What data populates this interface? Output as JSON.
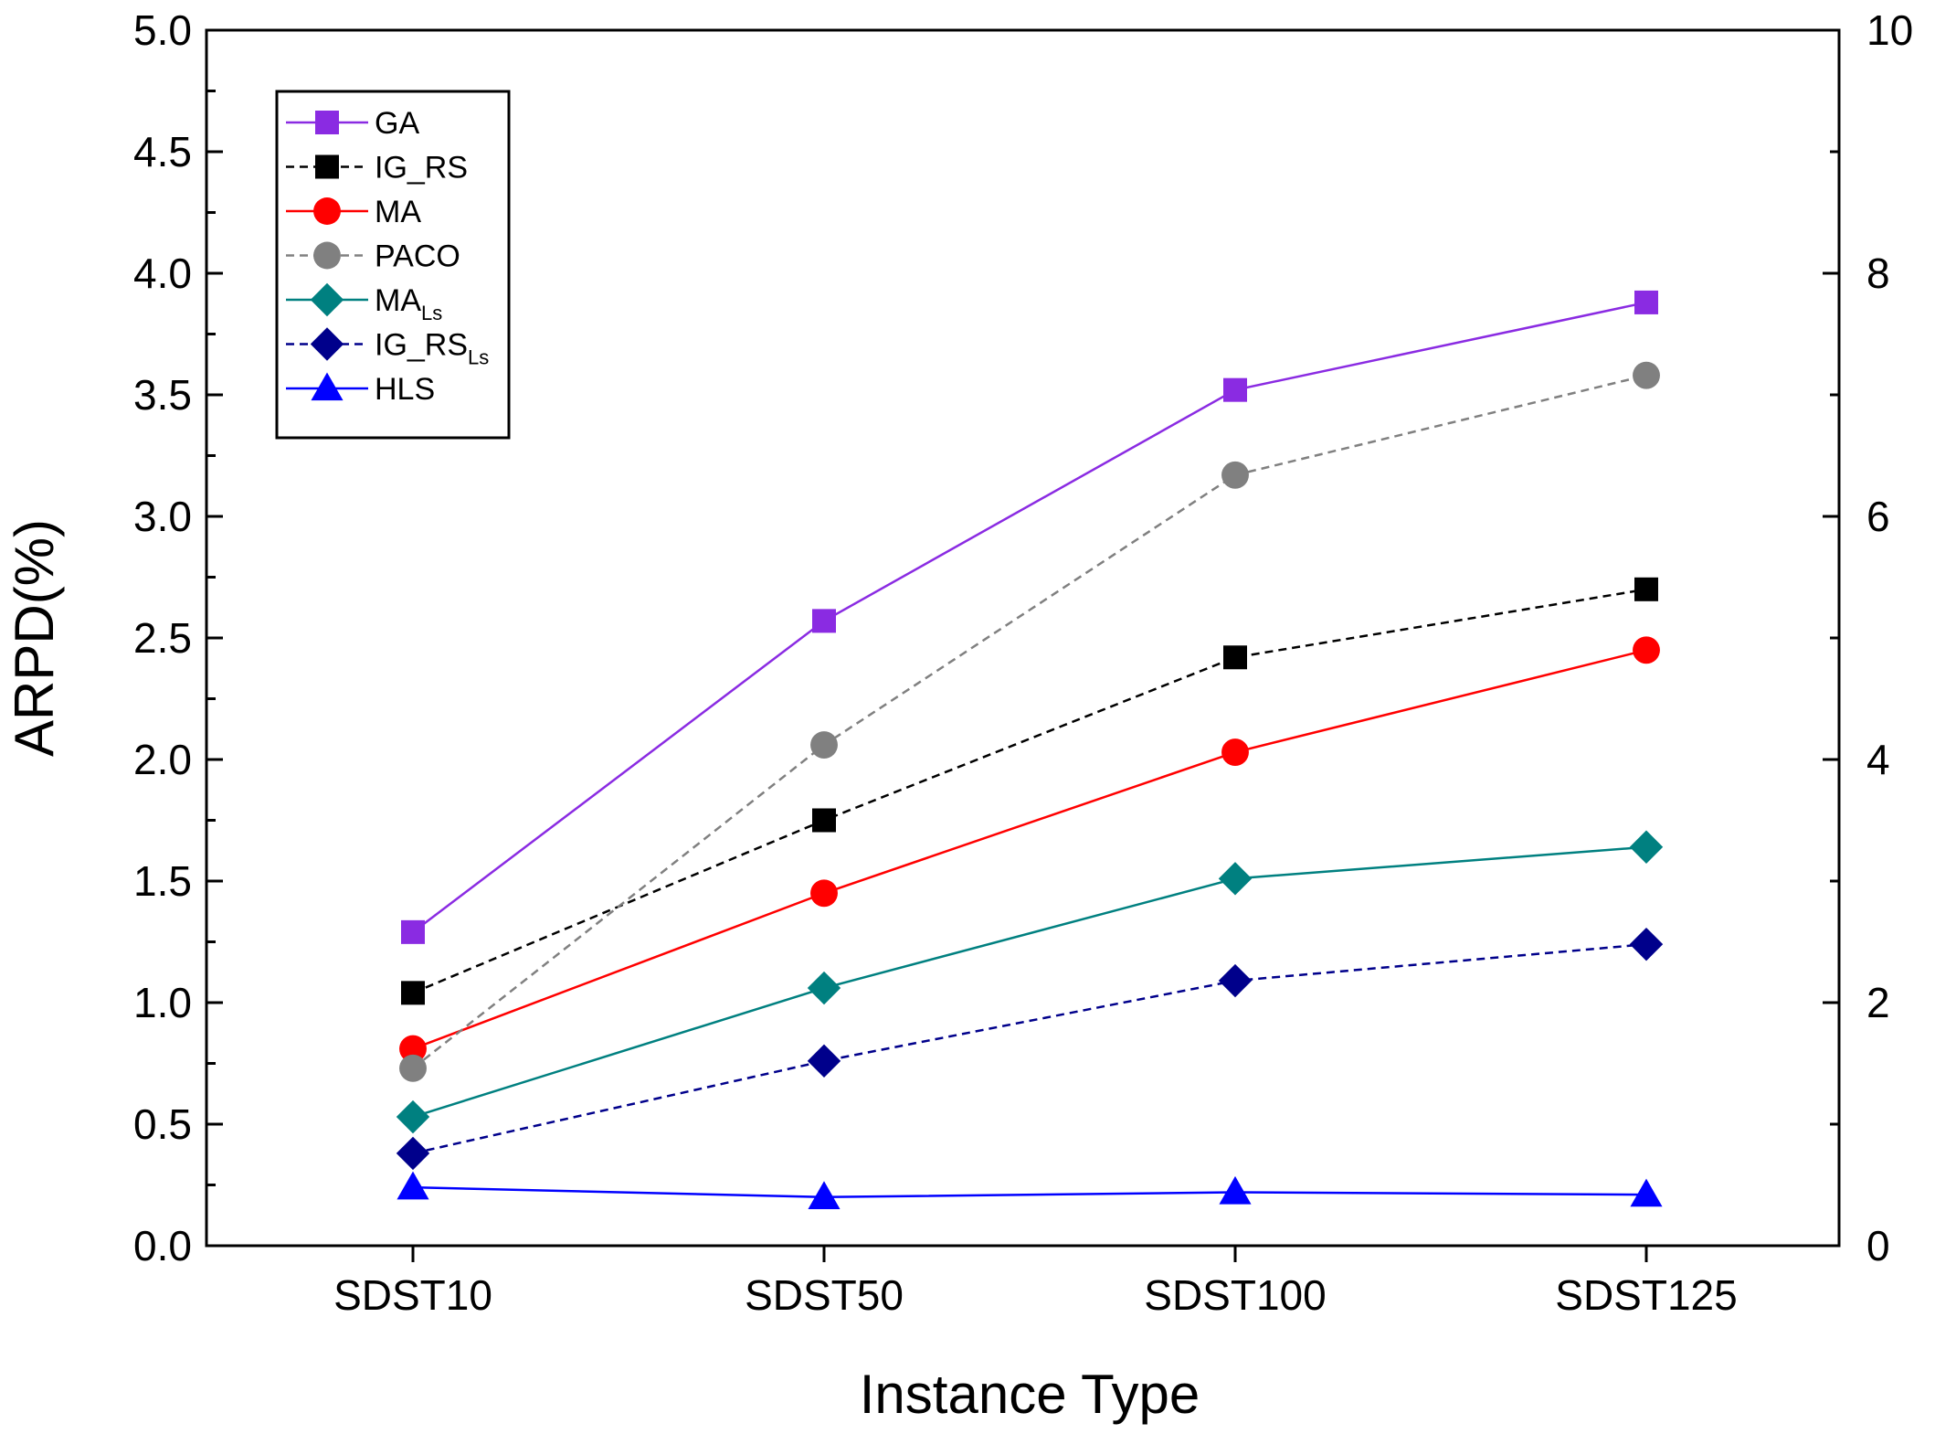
{
  "chart_data": {
    "type": "line",
    "title": "",
    "xlabel": "Instance Type",
    "ylabel": "ARPD(%)",
    "categories": [
      "SDST10",
      "SDST50",
      "SDST100",
      "SDST125"
    ],
    "ylim": [
      0,
      5
    ],
    "yticks": [
      "0.0",
      "0.5",
      "1.0",
      "1.5",
      "2.0",
      "2.5",
      "3.0",
      "3.5",
      "4.0",
      "4.5",
      "5.0"
    ],
    "y2lim": [
      0,
      10
    ],
    "y2ticks": [
      "0",
      "2",
      "4",
      "6",
      "8",
      "10"
    ],
    "grid": false,
    "legend_position": "top-left",
    "series": [
      {
        "name": "GA",
        "sub": "",
        "color": "#8a2be2",
        "dashed": false,
        "marker": "square",
        "values": [
          1.29,
          2.57,
          3.52,
          3.88
        ]
      },
      {
        "name": "IG_RS",
        "sub": "",
        "color": "#000000",
        "dashed": true,
        "marker": "square",
        "values": [
          1.04,
          1.75,
          2.42,
          2.7
        ]
      },
      {
        "name": "MA",
        "sub": "",
        "color": "#ff0000",
        "dashed": false,
        "marker": "circle",
        "values": [
          0.81,
          1.45,
          2.03,
          2.45
        ]
      },
      {
        "name": "PACO",
        "sub": "",
        "color": "#808080",
        "dashed": true,
        "marker": "circle",
        "values": [
          0.73,
          2.06,
          3.17,
          3.58
        ]
      },
      {
        "name": "MA",
        "sub": "Ls",
        "color": "#008080",
        "dashed": false,
        "marker": "diamond",
        "values": [
          0.53,
          1.06,
          1.51,
          1.64
        ]
      },
      {
        "name": "IG_RS",
        "sub": "Ls",
        "color": "#00008b",
        "dashed": true,
        "marker": "diamond",
        "values": [
          0.38,
          0.76,
          1.09,
          1.24
        ]
      },
      {
        "name": "HLS",
        "sub": "",
        "color": "#0000ff",
        "dashed": false,
        "marker": "triangle",
        "values": [
          0.24,
          0.2,
          0.22,
          0.21
        ]
      }
    ]
  }
}
